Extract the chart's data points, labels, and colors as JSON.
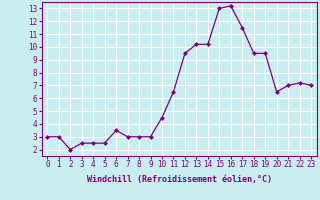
{
  "x": [
    0,
    1,
    2,
    3,
    4,
    5,
    6,
    7,
    8,
    9,
    10,
    11,
    12,
    13,
    14,
    15,
    16,
    17,
    18,
    19,
    20,
    21,
    22,
    23
  ],
  "y": [
    3,
    3,
    2,
    2.5,
    2.5,
    2.5,
    3.5,
    3,
    3,
    3,
    4.5,
    6.5,
    9.5,
    10.2,
    10.2,
    13,
    13.2,
    11.5,
    9.5,
    9.5,
    6.5,
    7,
    7.2,
    7
  ],
  "line_color": "#800080",
  "marker": "D",
  "marker_size": 2,
  "bg_color": "#c8eef0",
  "grid_color": "#aadddd",
  "xlabel": "Windchill (Refroidissement éolien,°C)",
  "xlabel_color": "#800080",
  "tick_color": "#800080",
  "axis_color": "#800080",
  "ylim": [
    1.5,
    13.5
  ],
  "xlim": [
    -0.5,
    23.5
  ],
  "yticks": [
    2,
    3,
    4,
    5,
    6,
    7,
    8,
    9,
    10,
    11,
    12,
    13
  ],
  "xticks": [
    0,
    1,
    2,
    3,
    4,
    5,
    6,
    7,
    8,
    9,
    10,
    11,
    12,
    13,
    14,
    15,
    16,
    17,
    18,
    19,
    20,
    21,
    22,
    23
  ],
  "tick_fontsize": 5.5,
  "xlabel_fontsize": 6.0
}
